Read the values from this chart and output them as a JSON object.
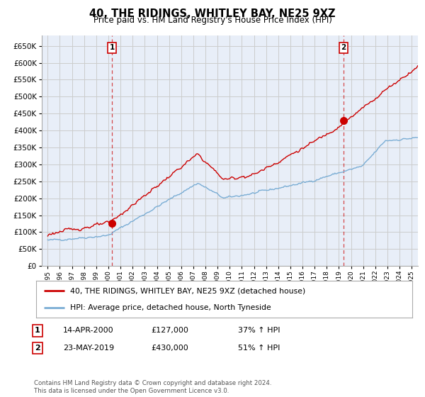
{
  "title": "40, THE RIDINGS, WHITLEY BAY, NE25 9XZ",
  "subtitle": "Price paid vs. HM Land Registry's House Price Index (HPI)",
  "legend_line1": "40, THE RIDINGS, WHITLEY BAY, NE25 9XZ (detached house)",
  "legend_line2": "HPI: Average price, detached house, North Tyneside",
  "annotation1_label": "1",
  "annotation1_date": "14-APR-2000",
  "annotation1_price": "£127,000",
  "annotation1_hpi": "37% ↑ HPI",
  "annotation2_label": "2",
  "annotation2_date": "23-MAY-2019",
  "annotation2_price": "£430,000",
  "annotation2_hpi": "51% ↑ HPI",
  "footnote": "Contains HM Land Registry data © Crown copyright and database right 2024.\nThis data is licensed under the Open Government Licence v3.0.",
  "sale1_x": 2000.29,
  "sale1_y": 127000,
  "sale2_x": 2019.39,
  "sale2_y": 430000,
  "vline1_x": 2000.29,
  "vline2_x": 2019.39,
  "ylim": [
    0,
    680000
  ],
  "xlim_left": 1994.5,
  "xlim_right": 2025.5,
  "red_color": "#cc0000",
  "blue_color": "#7aadd4",
  "grid_color": "#cccccc",
  "background_color": "#ffffff",
  "plot_bg_color": "#e8eef8"
}
